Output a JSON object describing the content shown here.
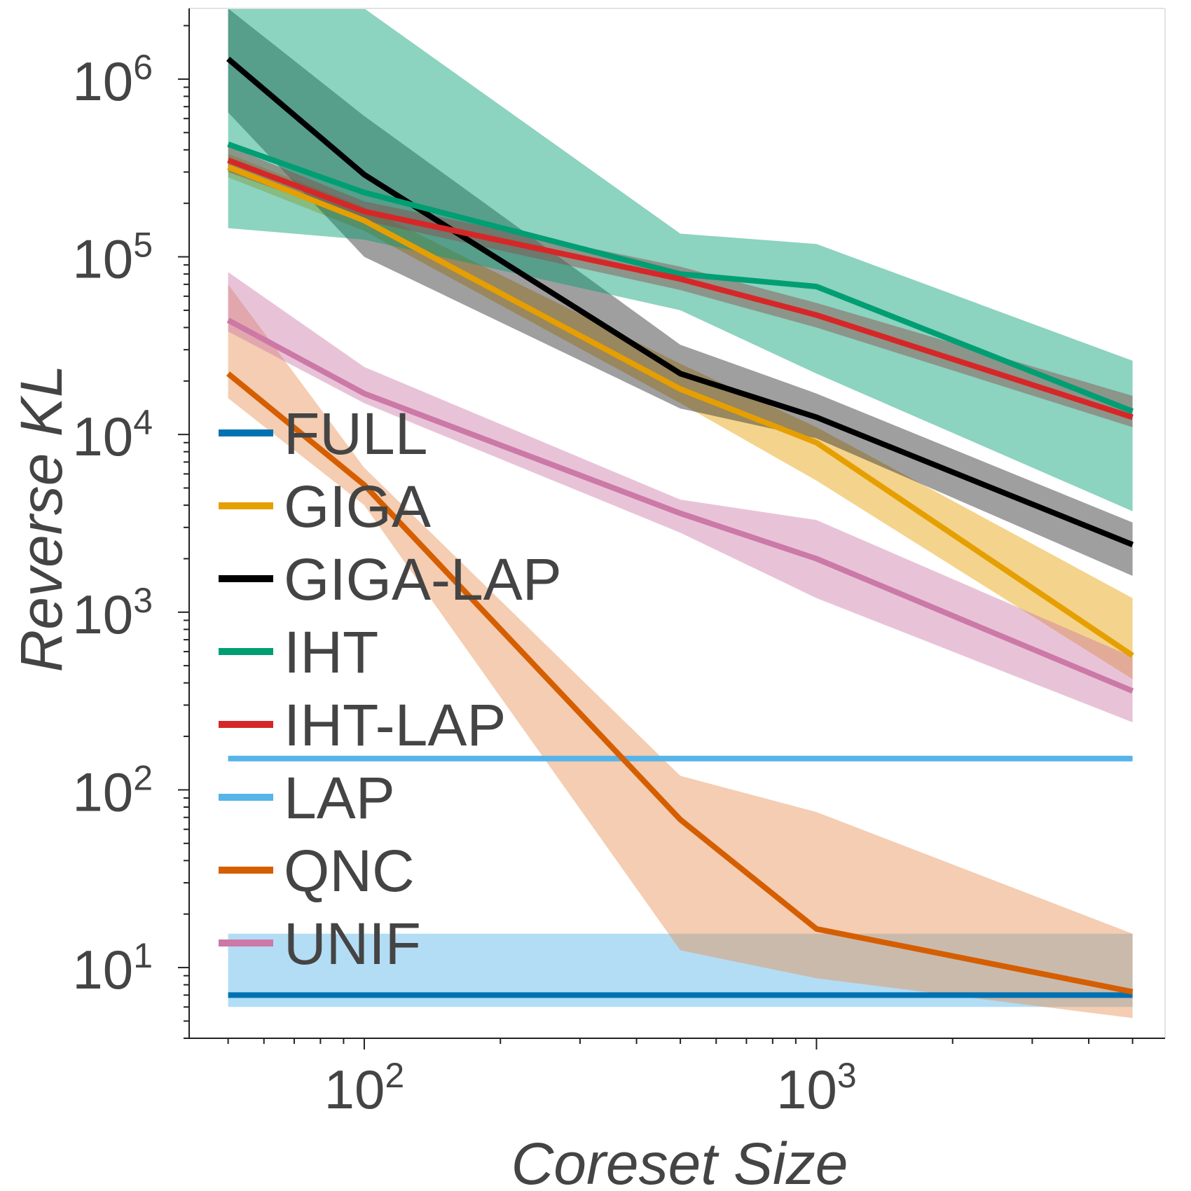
{
  "chart_data": {
    "type": "line",
    "title": "",
    "xlabel": "Coreset Size",
    "ylabel": "Reverse KL",
    "xscale": "log",
    "yscale": "log",
    "xlim": [
      41,
      5900
    ],
    "ylim": [
      4.0,
      2500000
    ],
    "x": [
      50,
      100,
      500,
      1000,
      5000
    ],
    "xticks": [
      {
        "value": 100,
        "base": "10",
        "exp": "2"
      },
      {
        "value": 1000,
        "base": "10",
        "exp": "3"
      }
    ],
    "yticks": [
      {
        "value": 10,
        "base": "10",
        "exp": "1"
      },
      {
        "value": 100,
        "base": "10",
        "exp": "2"
      },
      {
        "value": 1000,
        "base": "10",
        "exp": "3"
      },
      {
        "value": 10000,
        "base": "10",
        "exp": "4"
      },
      {
        "value": 100000,
        "base": "10",
        "exp": "5"
      },
      {
        "value": 1000000,
        "base": "10",
        "exp": "6"
      }
    ],
    "legend_position": "left",
    "series": [
      {
        "name": "FULL",
        "color": "#0072b2",
        "band_color": "#56b4e9",
        "values": [
          7,
          7,
          7,
          7,
          7
        ],
        "lower": [
          6,
          6,
          6,
          6,
          6
        ],
        "upper": [
          15.5,
          15.5,
          15.5,
          15.5,
          15.5
        ]
      },
      {
        "name": "GIGA",
        "color": "#e69f00",
        "band_color": "#e69f00",
        "values": [
          320000,
          160000,
          18000,
          9000,
          570
        ],
        "lower": [
          280000,
          140000,
          15000,
          5500,
          420
        ],
        "upper": [
          380000,
          190000,
          25000,
          11000,
          1200
        ]
      },
      {
        "name": "GIGA-LAP",
        "color": "#000000",
        "band_color": "#2b2b2b",
        "values": [
          1300000,
          290000,
          22000,
          12500,
          2400
        ],
        "lower": [
          650000,
          100000,
          14000,
          9500,
          1600
        ],
        "upper": [
          2500000,
          620000,
          32000,
          17000,
          3200
        ]
      },
      {
        "name": "IHT",
        "color": "#009e73",
        "band_color": "#009e73",
        "values": [
          430000,
          230000,
          80000,
          68000,
          13500
        ],
        "lower": [
          145000,
          125000,
          50000,
          22000,
          3700
        ],
        "upper": [
          2500000,
          2500000,
          135000,
          118000,
          26000
        ]
      },
      {
        "name": "IHT-LAP",
        "color": "#d62728",
        "band_color": "#8c4a4a",
        "values": [
          350000,
          180000,
          75000,
          47000,
          12500
        ],
        "lower": [
          300000,
          160000,
          65000,
          40000,
          11000
        ],
        "upper": [
          420000,
          205000,
          88000,
          55000,
          16500
        ]
      },
      {
        "name": "LAP",
        "color": "#56b4e9",
        "band_color": "#56b4e9",
        "values": [
          150,
          150,
          150,
          150,
          150
        ],
        "lower": [
          150,
          150,
          150,
          150,
          150
        ],
        "upper": [
          150,
          150,
          150,
          150,
          150
        ]
      },
      {
        "name": "QNC",
        "color": "#d55e00",
        "band_color": "#e69155",
        "values": [
          22000,
          5200,
          68,
          16.5,
          7.3
        ],
        "lower": [
          16000,
          4000,
          12.5,
          8.7,
          5.2
        ],
        "upper": [
          70000,
          6500,
          120,
          75,
          15.5
        ]
      },
      {
        "name": "UNIF",
        "color": "#cc79a7",
        "band_color": "#cc79a7",
        "values": [
          44000,
          17000,
          3600,
          2000,
          360
        ],
        "lower": [
          38000,
          15000,
          2800,
          1200,
          240
        ],
        "upper": [
          82000,
          24000,
          4300,
          3300,
          560
        ]
      }
    ]
  }
}
